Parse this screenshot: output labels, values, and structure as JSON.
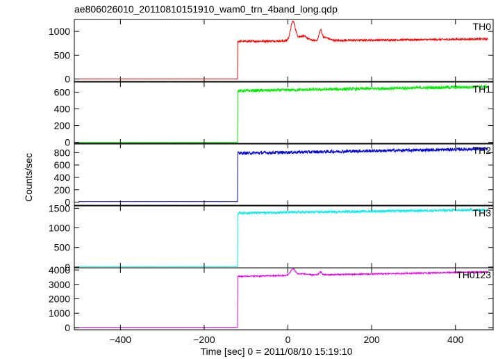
{
  "chart_data": {
    "type": "line",
    "title": "ae806026010_20110810151910_wam0_trn_4band_long.qdp",
    "xlabel": "Time [sec] 0 = 2011/08/10 15:19:10",
    "ylabel": "Counts/sec",
    "xlim": [
      -510,
      490
    ],
    "x_ticks": [
      -400,
      -200,
      0,
      200,
      400
    ],
    "x_tick_labels": [
      "−400",
      "−200",
      "0",
      "200",
      "400"
    ],
    "grid": false,
    "legend": "none",
    "step_time": -120,
    "data_start": -500,
    "data_end": 478,
    "panels": [
      {
        "name": "TH0",
        "color": "#ff0000",
        "ylim": [
          -50,
          1250
        ],
        "y_ticks": [
          0,
          500,
          1000
        ],
        "baseline": 0,
        "level_start": 790,
        "level_end": 840,
        "noise": 20,
        "peaks": [
          {
            "t": 12,
            "height": 400,
            "width": 8
          },
          {
            "t": 35,
            "height": 100,
            "width": 15
          },
          {
            "t": 78,
            "height": 200,
            "width": 5
          },
          {
            "t": 90,
            "height": 60,
            "width": 12
          }
        ]
      },
      {
        "name": "TH1",
        "color": "#00ee00",
        "ylim": [
          -20,
          720
        ],
        "y_ticks": [
          0,
          200,
          400,
          600
        ],
        "baseline": 0,
        "level_start": 615,
        "level_end": 665,
        "noise": 18,
        "peaks": []
      },
      {
        "name": "TH2",
        "color": "#0000dd",
        "ylim": [
          -50,
          950
        ],
        "y_ticks": [
          0,
          200,
          400,
          600,
          800
        ],
        "baseline": 10,
        "level_start": 790,
        "level_end": 860,
        "noise": 25,
        "peaks": []
      },
      {
        "name": "TH3",
        "color": "#00eeee",
        "ylim": [
          -20,
          1560
        ],
        "y_ticks": [
          0,
          500,
          1000,
          1500
        ],
        "baseline": 10,
        "level_start": 1380,
        "level_end": 1460,
        "noise": 30,
        "peaks": []
      },
      {
        "name": "TH0123",
        "color": "#ee00ee",
        "ylim": [
          -150,
          4150
        ],
        "y_ticks": [
          0,
          1000,
          2000,
          3000,
          4000
        ],
        "baseline": 10,
        "level_start": 3560,
        "level_end": 3870,
        "noise": 45,
        "peaks": [
          {
            "t": 12,
            "height": 450,
            "width": 8
          },
          {
            "t": 35,
            "height": 100,
            "width": 15
          },
          {
            "t": 78,
            "height": 200,
            "width": 5
          }
        ]
      }
    ]
  }
}
